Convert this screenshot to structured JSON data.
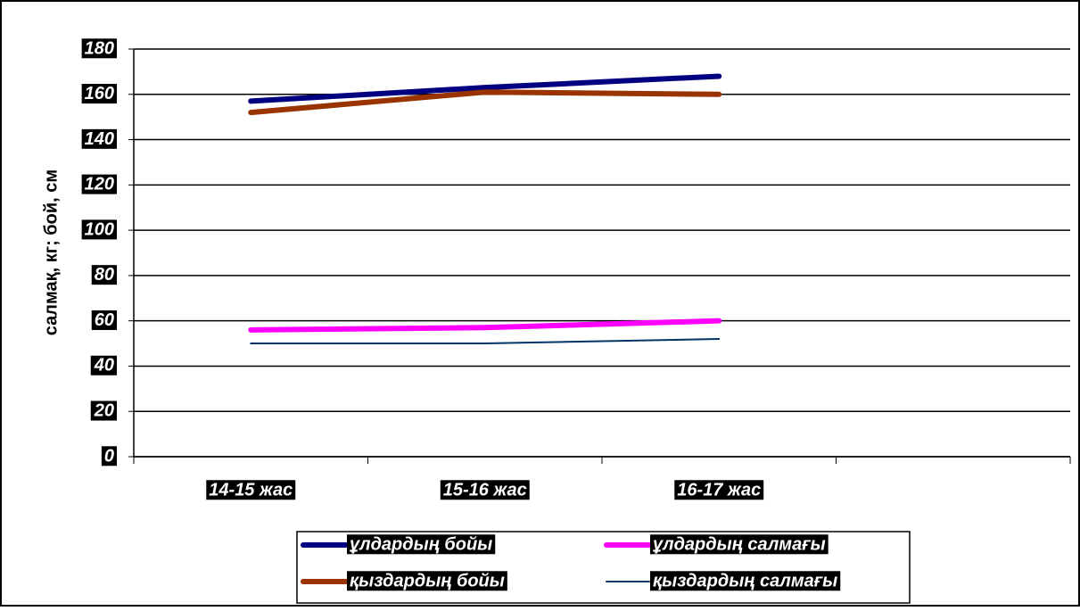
{
  "chart_data": {
    "type": "line",
    "y_axis_label": "салмақ, кг; бой, см",
    "categories": [
      "14-15 жас",
      "15-16 жас",
      "16-17 жас",
      null
    ],
    "series": [
      {
        "name": "ұлдардың бойы",
        "color": "#000080",
        "values": [
          157,
          163,
          168,
          null
        ]
      },
      {
        "name": "қыздардың бойы",
        "color": "#993300",
        "values": [
          152,
          161,
          160,
          null
        ]
      },
      {
        "name": "ұлдардың салмағы",
        "color": "#ff00ff",
        "values": [
          56,
          57,
          60,
          null
        ]
      },
      {
        "name": "қыздардың салмағы",
        "color": "#003366",
        "values": [
          50,
          50,
          52,
          null
        ]
      }
    ],
    "ylim": [
      0,
      180
    ],
    "yticks": [
      0,
      20,
      40,
      60,
      80,
      100,
      120,
      140,
      160,
      180
    ],
    "grid": true
  }
}
